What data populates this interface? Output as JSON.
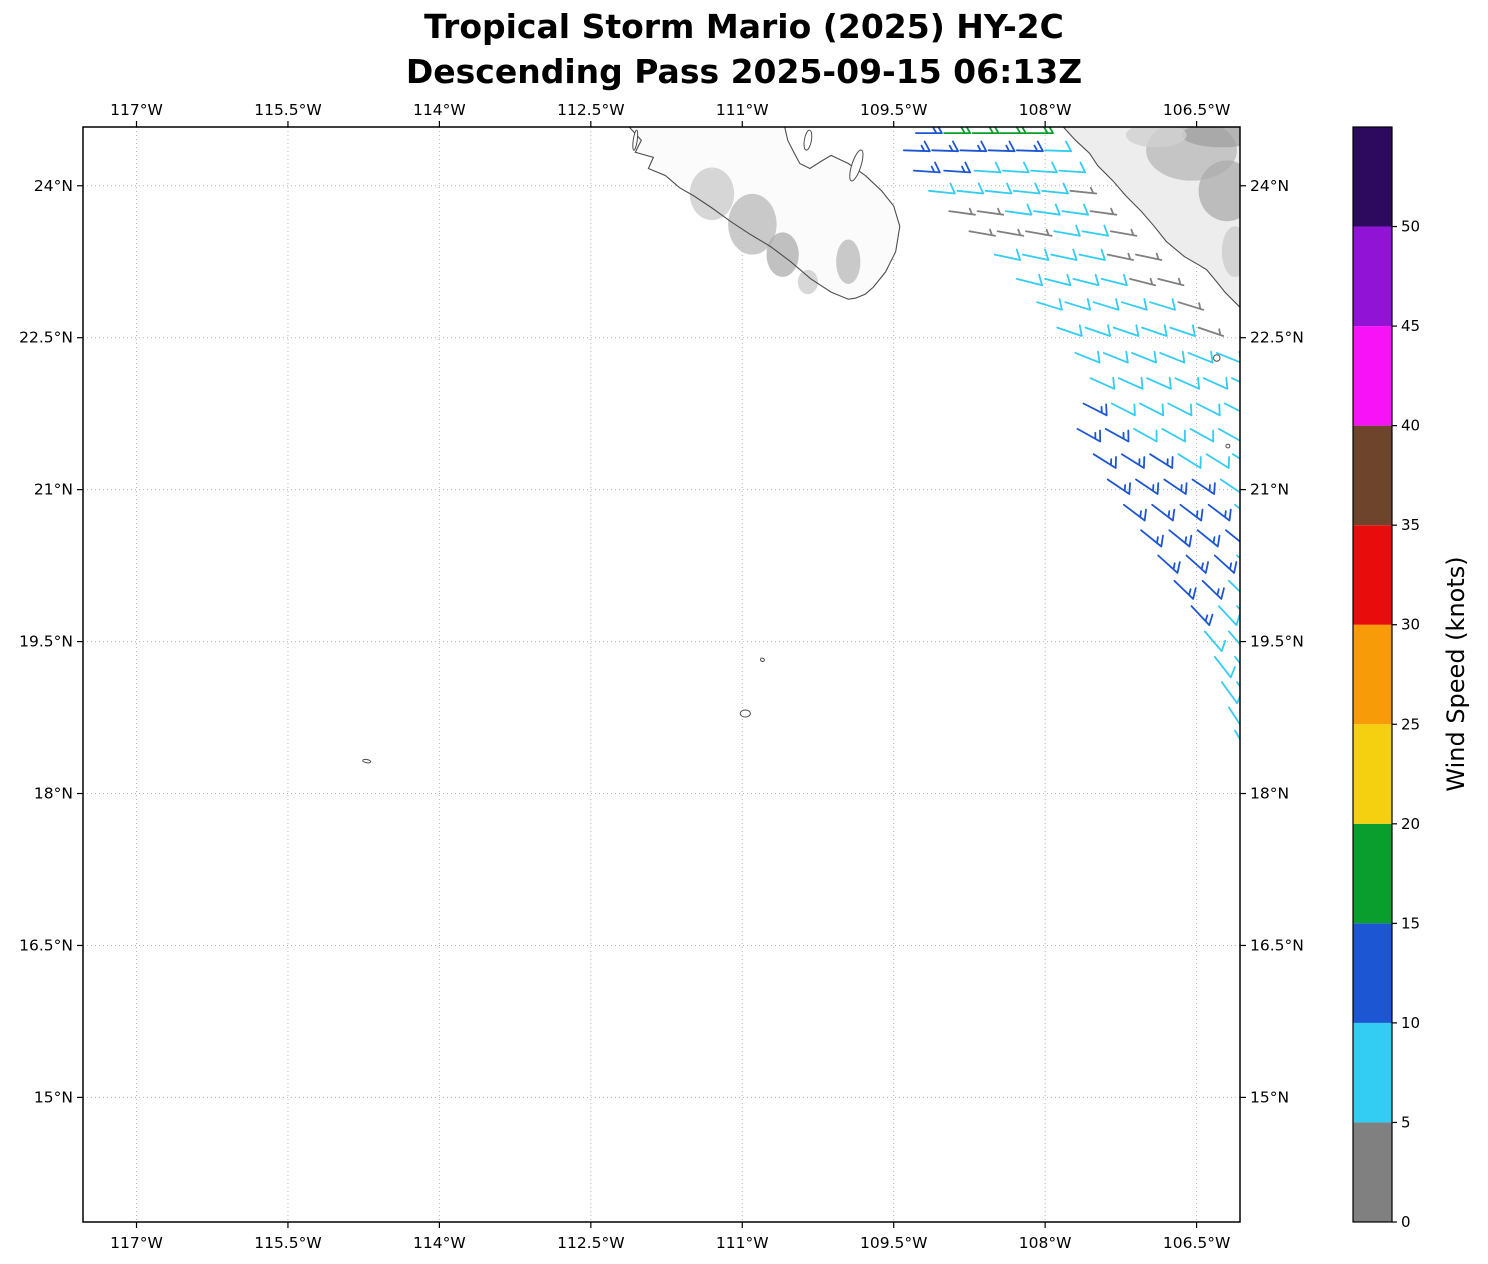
{
  "title": {
    "line1": "Tropical Storm Mario (2025) HY-2C",
    "line2": "Descending Pass 2025-09-15 06:13Z"
  },
  "colorbar": {
    "label": "Wind Speed (knots)",
    "vmax": 55,
    "tick_values": [
      0,
      5,
      10,
      15,
      20,
      25,
      30,
      35,
      40,
      45,
      50
    ],
    "tick_labels": [
      "0",
      "5",
      "10",
      "15",
      "20",
      "25",
      "30",
      "35",
      "40",
      "45",
      "50"
    ],
    "segments": [
      {
        "min": 0,
        "max": 5,
        "color": "#808080"
      },
      {
        "min": 5,
        "max": 10,
        "color": "#33ccf2"
      },
      {
        "min": 10,
        "max": 15,
        "color": "#1d56d2"
      },
      {
        "min": 15,
        "max": 20,
        "color": "#0a9e2e"
      },
      {
        "min": 20,
        "max": 25,
        "color": "#f5d011"
      },
      {
        "min": 25,
        "max": 30,
        "color": "#f79b09"
      },
      {
        "min": 30,
        "max": 35,
        "color": "#e80c0c"
      },
      {
        "min": 35,
        "max": 40,
        "color": "#6e452c"
      },
      {
        "min": 40,
        "max": 45,
        "color": "#f712f7"
      },
      {
        "min": 45,
        "max": 50,
        "color": "#9013d6"
      },
      {
        "min": 50,
        "max": 55,
        "color": "#2e0a5e"
      }
    ]
  },
  "chart_data": {
    "type": "wind_barb_map",
    "units": "knots",
    "axes": {
      "lon_range": [
        -117.53,
        -106.07
      ],
      "lat_range": [
        13.77,
        24.58
      ],
      "lon_tick_values": [
        -117,
        -115.5,
        -114,
        -112.5,
        -111,
        -109.5,
        -108,
        -106.5
      ],
      "lon_tick_labels": [
        "117°W",
        "115.5°W",
        "114°W",
        "112.5°W",
        "111°W",
        "109.5°W",
        "108°W",
        "106.5°W"
      ],
      "lat_tick_values": [
        24,
        22.5,
        21,
        19.5,
        18,
        16.5,
        15
      ],
      "lat_tick_labels": [
        "24°N",
        "22.5°N",
        "21°N",
        "19.5°N",
        "18°N",
        "16.5°N",
        "15°N"
      ]
    },
    "barbs": [
      [
        -109.28,
        24.52,
        90,
        13
      ],
      [
        -109.0,
        24.52,
        90,
        18
      ],
      [
        -108.72,
        24.52,
        90,
        18
      ],
      [
        -108.45,
        24.52,
        90,
        18
      ],
      [
        -108.18,
        24.52,
        90,
        18
      ],
      [
        -109.4,
        24.35,
        92,
        13
      ],
      [
        -109.12,
        24.35,
        92,
        13
      ],
      [
        -108.84,
        24.35,
        92,
        13
      ],
      [
        -108.56,
        24.35,
        92,
        13
      ],
      [
        -108.28,
        24.35,
        92,
        13
      ],
      [
        -108.0,
        24.35,
        92,
        8
      ],
      [
        -109.3,
        24.15,
        94,
        13
      ],
      [
        -109.0,
        24.15,
        94,
        13
      ],
      [
        -108.7,
        24.15,
        94,
        8
      ],
      [
        -108.42,
        24.15,
        94,
        8
      ],
      [
        -108.14,
        24.15,
        94,
        8
      ],
      [
        -107.86,
        24.15,
        94,
        8
      ],
      [
        -109.15,
        23.95,
        96,
        8
      ],
      [
        -108.87,
        23.95,
        96,
        8
      ],
      [
        -108.59,
        23.95,
        96,
        8
      ],
      [
        -108.31,
        23.95,
        96,
        8
      ],
      [
        -108.03,
        23.95,
        96,
        8
      ],
      [
        -107.75,
        23.95,
        96,
        3
      ],
      [
        -108.95,
        23.75,
        98,
        3
      ],
      [
        -108.67,
        23.75,
        98,
        3
      ],
      [
        -108.39,
        23.75,
        98,
        8
      ],
      [
        -108.11,
        23.75,
        98,
        8
      ],
      [
        -107.83,
        23.75,
        98,
        8
      ],
      [
        -107.55,
        23.75,
        98,
        3
      ],
      [
        -108.75,
        23.55,
        100,
        3
      ],
      [
        -108.47,
        23.55,
        100,
        3
      ],
      [
        -108.19,
        23.55,
        100,
        3
      ],
      [
        -107.91,
        23.55,
        100,
        8
      ],
      [
        -107.63,
        23.55,
        100,
        8
      ],
      [
        -107.35,
        23.55,
        100,
        3
      ],
      [
        -108.5,
        23.32,
        102,
        8
      ],
      [
        -108.22,
        23.32,
        102,
        8
      ],
      [
        -107.94,
        23.32,
        102,
        8
      ],
      [
        -107.66,
        23.32,
        102,
        8
      ],
      [
        -107.38,
        23.32,
        102,
        3
      ],
      [
        -107.1,
        23.32,
        102,
        3
      ],
      [
        -108.28,
        23.08,
        104,
        8
      ],
      [
        -108.0,
        23.08,
        104,
        8
      ],
      [
        -107.72,
        23.08,
        104,
        8
      ],
      [
        -107.44,
        23.08,
        104,
        8
      ],
      [
        -107.16,
        23.08,
        104,
        3
      ],
      [
        -106.88,
        23.08,
        104,
        3
      ],
      [
        -108.08,
        22.85,
        107,
        8
      ],
      [
        -107.8,
        22.85,
        107,
        8
      ],
      [
        -107.52,
        22.85,
        107,
        8
      ],
      [
        -107.24,
        22.85,
        107,
        8
      ],
      [
        -106.96,
        22.85,
        107,
        8
      ],
      [
        -106.68,
        22.85,
        107,
        3
      ],
      [
        -107.88,
        22.6,
        109,
        8
      ],
      [
        -107.6,
        22.6,
        109,
        8
      ],
      [
        -107.32,
        22.6,
        109,
        8
      ],
      [
        -107.04,
        22.6,
        109,
        8
      ],
      [
        -106.76,
        22.6,
        109,
        8
      ],
      [
        -106.48,
        22.6,
        109,
        3
      ],
      [
        -107.7,
        22.35,
        112,
        8
      ],
      [
        -107.42,
        22.35,
        112,
        8
      ],
      [
        -107.14,
        22.35,
        112,
        8
      ],
      [
        -106.86,
        22.35,
        112,
        8
      ],
      [
        -106.58,
        22.35,
        112,
        8
      ],
      [
        -106.3,
        22.35,
        112,
        8
      ],
      [
        -107.55,
        22.1,
        114,
        8
      ],
      [
        -107.27,
        22.1,
        114,
        8
      ],
      [
        -106.99,
        22.1,
        114,
        8
      ],
      [
        -106.71,
        22.1,
        114,
        8
      ],
      [
        -106.43,
        22.1,
        114,
        8
      ],
      [
        -106.15,
        22.1,
        114,
        8
      ],
      [
        -107.62,
        21.85,
        117,
        13
      ],
      [
        -107.34,
        21.85,
        117,
        8
      ],
      [
        -107.06,
        21.85,
        117,
        8
      ],
      [
        -106.78,
        21.85,
        117,
        8
      ],
      [
        -106.5,
        21.85,
        117,
        8
      ],
      [
        -106.22,
        21.85,
        117,
        8
      ],
      [
        -107.68,
        21.6,
        119,
        13
      ],
      [
        -107.4,
        21.6,
        119,
        13
      ],
      [
        -107.12,
        21.6,
        119,
        8
      ],
      [
        -106.84,
        21.6,
        119,
        8
      ],
      [
        -106.56,
        21.6,
        119,
        8
      ],
      [
        -106.28,
        21.6,
        119,
        8
      ],
      [
        -107.52,
        21.35,
        122,
        13
      ],
      [
        -107.24,
        21.35,
        122,
        13
      ],
      [
        -106.96,
        21.35,
        122,
        13
      ],
      [
        -106.68,
        21.35,
        122,
        8
      ],
      [
        -106.4,
        21.35,
        122,
        8
      ],
      [
        -106.14,
        21.35,
        122,
        8
      ],
      [
        -107.38,
        21.1,
        124,
        13
      ],
      [
        -107.1,
        21.1,
        124,
        13
      ],
      [
        -106.82,
        21.1,
        124,
        13
      ],
      [
        -106.54,
        21.1,
        124,
        13
      ],
      [
        -106.26,
        21.1,
        124,
        8
      ],
      [
        -107.22,
        20.85,
        127,
        13
      ],
      [
        -106.94,
        20.85,
        127,
        13
      ],
      [
        -106.66,
        20.85,
        127,
        13
      ],
      [
        -106.38,
        20.85,
        127,
        13
      ],
      [
        -106.12,
        20.85,
        127,
        8
      ],
      [
        -107.05,
        20.6,
        129,
        13
      ],
      [
        -106.77,
        20.6,
        129,
        13
      ],
      [
        -106.49,
        20.6,
        129,
        13
      ],
      [
        -106.21,
        20.6,
        129,
        13
      ],
      [
        -106.88,
        20.35,
        132,
        13
      ],
      [
        -106.6,
        20.35,
        132,
        13
      ],
      [
        -106.32,
        20.35,
        132,
        13
      ],
      [
        -106.1,
        20.35,
        132,
        8
      ],
      [
        -106.72,
        20.1,
        134,
        13
      ],
      [
        -106.44,
        20.1,
        134,
        13
      ],
      [
        -106.18,
        20.1,
        134,
        8
      ],
      [
        -106.55,
        19.85,
        137,
        13
      ],
      [
        -106.28,
        19.85,
        137,
        8
      ],
      [
        -106.1,
        19.85,
        137,
        8
      ],
      [
        -106.42,
        19.6,
        139,
        8
      ],
      [
        -106.18,
        19.6,
        139,
        8
      ],
      [
        -106.32,
        19.35,
        142,
        8
      ],
      [
        -106.12,
        19.35,
        142,
        8
      ],
      [
        -106.25,
        19.1,
        144,
        8
      ],
      [
        -106.1,
        19.1,
        144,
        8
      ],
      [
        -106.18,
        18.85,
        147,
        8
      ],
      [
        -106.12,
        18.62,
        149,
        8
      ]
    ],
    "coastlines": {
      "baja": [
        [
          -112.12,
          24.58
        ],
        [
          -112.0,
          24.45
        ],
        [
          -112.06,
          24.33
        ],
        [
          -111.88,
          24.28
        ],
        [
          -111.93,
          24.17
        ],
        [
          -111.76,
          24.1
        ],
        [
          -111.62,
          23.98
        ],
        [
          -111.48,
          23.9
        ],
        [
          -111.3,
          23.78
        ],
        [
          -111.12,
          23.65
        ],
        [
          -110.92,
          23.52
        ],
        [
          -110.72,
          23.4
        ],
        [
          -110.52,
          23.25
        ],
        [
          -110.32,
          23.08
        ],
        [
          -110.12,
          22.95
        ],
        [
          -109.95,
          22.88
        ],
        [
          -109.88,
          22.89
        ],
        [
          -109.78,
          22.93
        ],
        [
          -109.7,
          23.0
        ],
        [
          -109.58,
          23.15
        ],
        [
          -109.48,
          23.35
        ],
        [
          -109.44,
          23.6
        ],
        [
          -109.5,
          23.8
        ],
        [
          -109.62,
          23.95
        ],
        [
          -109.78,
          24.1
        ],
        [
          -109.95,
          24.22
        ],
        [
          -110.12,
          24.3
        ],
        [
          -110.22,
          24.24
        ],
        [
          -110.33,
          24.17
        ],
        [
          -110.43,
          24.22
        ],
        [
          -110.49,
          24.33
        ],
        [
          -110.55,
          24.45
        ],
        [
          -110.58,
          24.58
        ]
      ],
      "mainland": [
        [
          -107.82,
          24.58
        ],
        [
          -107.7,
          24.45
        ],
        [
          -107.56,
          24.32
        ],
        [
          -107.48,
          24.2
        ],
        [
          -107.33,
          24.05
        ],
        [
          -107.2,
          23.9
        ],
        [
          -107.05,
          23.75
        ],
        [
          -106.92,
          23.6
        ],
        [
          -106.8,
          23.45
        ],
        [
          -106.62,
          23.3
        ],
        [
          -106.48,
          23.22
        ],
        [
          -106.4,
          23.17
        ],
        [
          -106.3,
          23.05
        ],
        [
          -106.22,
          22.95
        ],
        [
          -106.07,
          22.8
        ]
      ]
    },
    "islands": [
      [
        -109.87,
        24.2,
        0.045,
        0.16,
        18
      ],
      [
        -110.35,
        24.45,
        0.035,
        0.1,
        10
      ],
      [
        -112.06,
        24.45,
        0.018,
        0.1,
        8
      ],
      [
        -106.3,
        22.3,
        0.032,
        0.032,
        0
      ],
      [
        -106.19,
        21.43,
        0.018,
        0.018,
        0
      ],
      [
        -110.8,
        19.32,
        0.02,
        0.012,
        25
      ],
      [
        -110.97,
        18.79,
        0.05,
        0.035,
        0
      ],
      [
        -114.72,
        18.32,
        0.04,
        0.016,
        10
      ]
    ],
    "terrain": [
      [
        -111.3,
        23.92,
        0.22,
        0.26,
        "#cdcdcd",
        0.8
      ],
      [
        -110.9,
        23.62,
        0.24,
        0.3,
        "#bdbdbd",
        0.8
      ],
      [
        -110.6,
        23.32,
        0.16,
        0.22,
        "#a6a6a6",
        0.7
      ],
      [
        -109.95,
        23.25,
        0.12,
        0.22,
        "#b3b3b3",
        0.7
      ],
      [
        -110.35,
        23.05,
        0.1,
        0.12,
        "#c6c6c6",
        0.7
      ],
      [
        -106.55,
        24.35,
        0.45,
        0.3,
        "#bdbdbd",
        0.85
      ],
      [
        -106.25,
        24.5,
        0.4,
        0.12,
        "#9c9c9c",
        0.7
      ],
      [
        -106.2,
        23.95,
        0.28,
        0.3,
        "#ababab",
        0.75
      ],
      [
        -106.9,
        24.5,
        0.3,
        0.12,
        "#d0d0d0",
        0.8
      ],
      [
        -106.12,
        23.35,
        0.13,
        0.25,
        "#c8c8c8",
        0.7
      ]
    ]
  }
}
